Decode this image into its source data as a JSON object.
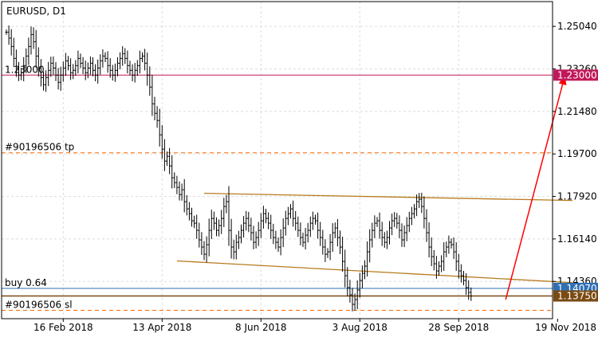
{
  "chart_data": {
    "type": "bar",
    "subtype": "ohlc",
    "title": "EURUSD, D1",
    "y_ticks": [
      1.2504,
      1.2326,
      1.2148,
      1.197,
      1.1792,
      1.1614,
      1.1436
    ],
    "y_tick_labels": [
      "1.25040",
      "1.23260",
      "1.21480",
      "1.19700",
      "1.17920",
      "1.16140",
      "1.14360"
    ],
    "ylim": [
      1.128,
      1.2608
    ],
    "x_tick_labels": [
      "16 Feb 2018",
      "13 Apr 2018",
      "8 Jun 2018",
      "3 Aug 2018",
      "28 Sep 2018",
      "19 Nov 2018"
    ],
    "x_tick_bars": [
      23,
      63,
      103,
      143,
      183,
      223
    ],
    "levels": [
      {
        "name": "target",
        "price": 1.23,
        "label": "1.23000",
        "color": "#c2185b"
      },
      {
        "name": "tp",
        "price": 1.1975,
        "label": "#90196506 tp",
        "color": "#ff6a00"
      },
      {
        "name": "buy",
        "price": 1.1407,
        "label": "buy 0.64",
        "badge": "1.14070",
        "color": "#2f6fb3"
      },
      {
        "name": "current",
        "price": 1.1375,
        "badge": "1.13750",
        "color": "#7a4a12"
      },
      {
        "name": "sl",
        "price": 1.1315,
        "label": "#90196506 sl",
        "color": "#ff6a00"
      }
    ],
    "channel": {
      "upper": {
        "from": [
          80,
          1.1805
        ],
        "to": [
          229,
          1.1775
        ]
      },
      "lower": {
        "from": [
          69,
          1.1522
        ],
        "to": [
          229,
          1.1431
        ]
      },
      "color": "#b87a1c"
    },
    "arrow": {
      "from": [
        202,
        1.136
      ],
      "to": [
        226,
        1.23
      ],
      "color": "#ff0000"
    },
    "series": [
      {
        "values": [
          1.248,
          1.2455,
          1.242,
          1.237,
          1.233,
          1.23,
          1.231,
          1.234,
          1.238,
          1.242,
          1.247,
          1.244,
          1.238,
          1.233,
          1.229,
          1.226,
          1.229,
          1.232,
          1.235,
          1.233,
          1.23,
          1.227,
          1.23,
          1.233,
          1.236,
          1.234,
          1.231,
          1.232,
          1.234,
          1.237,
          1.235,
          1.233,
          1.231,
          1.233,
          1.235,
          1.232,
          1.23,
          1.233,
          1.236,
          1.238,
          1.237,
          1.234,
          1.232,
          1.23,
          1.232,
          1.235,
          1.237,
          1.239,
          1.237,
          1.234,
          1.232,
          1.23,
          1.232,
          1.234,
          1.237,
          1.238,
          1.235,
          1.23,
          1.225,
          1.218,
          1.214,
          1.211,
          1.205,
          1.199,
          1.194,
          1.196,
          1.192,
          1.187,
          1.185,
          1.183,
          1.18,
          1.182,
          1.177,
          1.174,
          1.172,
          1.169,
          1.168,
          1.165,
          1.161,
          1.158,
          1.155,
          1.159,
          1.165,
          1.17,
          1.168,
          1.165,
          1.167,
          1.17,
          1.175,
          1.177,
          1.165,
          1.158,
          1.156,
          1.16,
          1.162,
          1.165,
          1.168,
          1.17,
          1.167,
          1.164,
          1.16,
          1.162,
          1.165,
          1.169,
          1.172,
          1.17,
          1.168,
          1.165,
          1.162,
          1.16,
          1.158,
          1.162,
          1.166,
          1.17,
          1.172,
          1.174,
          1.17,
          1.168,
          1.165,
          1.162,
          1.16,
          1.163,
          1.165,
          1.168,
          1.17,
          1.169,
          1.165,
          1.162,
          1.158,
          1.155,
          1.156,
          1.16,
          1.164,
          1.166,
          1.162,
          1.158,
          1.152,
          1.146,
          1.141,
          1.138,
          1.134,
          1.136,
          1.14,
          1.144,
          1.147,
          1.15,
          1.156,
          1.161,
          1.165,
          1.168,
          1.169,
          1.165,
          1.162,
          1.16,
          1.162,
          1.166,
          1.169,
          1.17,
          1.168,
          1.165,
          1.161,
          1.164,
          1.167,
          1.17,
          1.172,
          1.174,
          1.177,
          1.178,
          1.175,
          1.17,
          1.164,
          1.158,
          1.154,
          1.151,
          1.148,
          1.15,
          1.152,
          1.156,
          1.158,
          1.16,
          1.159,
          1.156,
          1.152,
          1.148,
          1.146,
          1.144,
          1.141,
          1.139,
          1.1375
        ]
      }
    ]
  }
}
